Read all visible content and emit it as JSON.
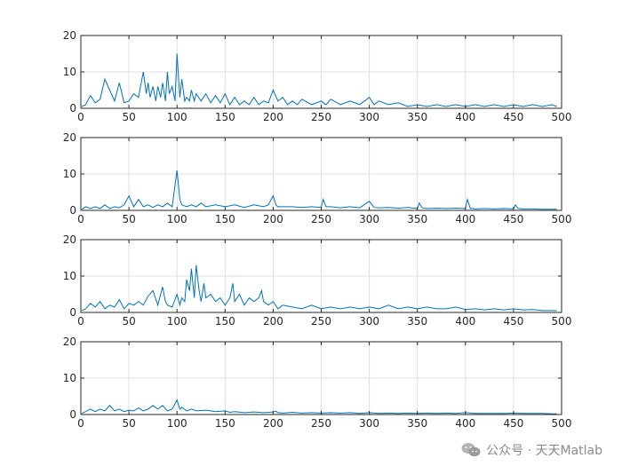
{
  "chart_data": [
    {
      "type": "line",
      "xlim": [
        0,
        500
      ],
      "ylim": [
        0,
        20
      ],
      "xticks": [
        0,
        50,
        100,
        150,
        200,
        250,
        300,
        350,
        400,
        450,
        500
      ],
      "yticks": [
        0,
        10,
        20
      ],
      "grid": true,
      "color": "#0072BD",
      "series": [
        {
          "x": [
            1,
            5,
            10,
            15,
            20,
            25,
            30,
            35,
            40,
            45,
            50,
            55,
            60,
            62,
            65,
            68,
            70,
            72,
            75,
            78,
            80,
            83,
            85,
            88,
            90,
            92,
            95,
            98,
            100,
            103,
            105,
            108,
            110,
            113,
            115,
            118,
            120,
            125,
            130,
            135,
            140,
            145,
            150,
            155,
            160,
            165,
            170,
            175,
            180,
            185,
            190,
            195,
            200,
            205,
            210,
            215,
            220,
            225,
            230,
            240,
            250,
            255,
            260,
            270,
            280,
            290,
            300,
            305,
            310,
            320,
            330,
            340,
            350,
            360,
            370,
            380,
            390,
            400,
            410,
            420,
            430,
            440,
            450,
            460,
            470,
            480,
            490,
            495
          ],
          "y": [
            0.5,
            1,
            3.5,
            1.5,
            2.5,
            8,
            5,
            2,
            7,
            1.5,
            2,
            4,
            3,
            6,
            10,
            4,
            7,
            3,
            6,
            2,
            6,
            3,
            7,
            2,
            10,
            4,
            6,
            2,
            15,
            3,
            8,
            2,
            3,
            2,
            5,
            2,
            4,
            2,
            4,
            1.5,
            3.5,
            1.5,
            4,
            1,
            3,
            1,
            2,
            1,
            3,
            1,
            2,
            1.5,
            5,
            2,
            3,
            1,
            2,
            1,
            2.5,
            1,
            2,
            1,
            2.5,
            1,
            2,
            1,
            3,
            1,
            2,
            1,
            1.5,
            0.5,
            1,
            0.5,
            1,
            0.5,
            1,
            0.5,
            1,
            0.5,
            1,
            0.5,
            1,
            0.5,
            1,
            0.5,
            1,
            0.5
          ]
        }
      ]
    },
    {
      "type": "line",
      "xlim": [
        0,
        500
      ],
      "ylim": [
        0,
        20
      ],
      "xticks": [
        0,
        50,
        100,
        150,
        200,
        250,
        300,
        350,
        400,
        450,
        500
      ],
      "yticks": [
        0,
        10,
        20
      ],
      "grid": true,
      "color": "#0072BD",
      "series": [
        {
          "x": [
            1,
            5,
            10,
            15,
            20,
            25,
            30,
            35,
            40,
            45,
            50,
            55,
            60,
            65,
            70,
            75,
            80,
            85,
            90,
            95,
            100,
            103,
            105,
            110,
            115,
            120,
            125,
            130,
            140,
            150,
            160,
            170,
            180,
            190,
            195,
            200,
            203,
            205,
            210,
            220,
            230,
            240,
            250,
            252,
            255,
            260,
            270,
            280,
            290,
            300,
            303,
            305,
            310,
            320,
            330,
            340,
            350,
            352,
            355,
            360,
            370,
            380,
            390,
            400,
            402,
            405,
            410,
            420,
            430,
            440,
            450,
            452,
            455,
            460,
            470,
            480,
            490,
            495
          ],
          "y": [
            0.3,
            1,
            0.5,
            1,
            0.5,
            1.5,
            0.5,
            1,
            0.7,
            1.5,
            4,
            1,
            3,
            1,
            1.5,
            0.8,
            1.5,
            1,
            2,
            1,
            11,
            3,
            1.5,
            1,
            1.5,
            1,
            2,
            1,
            1.5,
            1,
            1.5,
            0.8,
            1.5,
            1,
            1.5,
            4,
            1.5,
            1,
            1,
            1,
            0.8,
            1,
            0.8,
            3,
            1,
            1,
            0.7,
            1,
            0.7,
            2.5,
            1.5,
            0.8,
            0.7,
            0.8,
            0.6,
            0.8,
            0.5,
            2,
            0.7,
            0.5,
            0.6,
            0.5,
            0.6,
            0.5,
            3,
            0.6,
            0.4,
            0.5,
            0.4,
            0.5,
            0.4,
            1.5,
            0.5,
            0.4,
            0.4,
            0.3,
            0.3,
            0.3
          ]
        }
      ]
    },
    {
      "type": "line",
      "xlim": [
        0,
        500
      ],
      "ylim": [
        0,
        20
      ],
      "xticks": [
        0,
        50,
        100,
        150,
        200,
        250,
        300,
        350,
        400,
        450,
        500
      ],
      "yticks": [
        0,
        10,
        20
      ],
      "grid": true,
      "color": "#0072BD",
      "series": [
        {
          "x": [
            1,
            5,
            10,
            15,
            20,
            25,
            30,
            35,
            40,
            45,
            50,
            55,
            60,
            65,
            70,
            75,
            80,
            85,
            88,
            90,
            95,
            100,
            103,
            105,
            108,
            110,
            113,
            115,
            118,
            120,
            123,
            125,
            128,
            130,
            135,
            140,
            145,
            150,
            155,
            158,
            160,
            165,
            170,
            175,
            180,
            185,
            188,
            190,
            195,
            200,
            205,
            210,
            220,
            230,
            240,
            250,
            260,
            270,
            280,
            290,
            300,
            310,
            320,
            330,
            340,
            350,
            360,
            370,
            380,
            390,
            400,
            410,
            420,
            430,
            440,
            450,
            460,
            470,
            480,
            490,
            495
          ],
          "y": [
            0.5,
            1,
            2.5,
            1.5,
            3,
            1,
            2,
            1.5,
            3.5,
            1,
            2.5,
            2,
            3,
            2,
            4.5,
            6,
            2,
            7,
            3,
            2,
            1.5,
            5,
            2,
            4,
            3,
            9,
            6,
            12,
            4,
            13,
            6,
            3,
            8,
            4,
            5,
            3,
            4,
            2,
            4,
            8,
            3,
            5,
            2,
            4,
            3,
            4,
            6,
            3,
            2,
            3,
            1,
            2,
            1.5,
            1,
            2,
            1,
            1.5,
            1,
            1.5,
            1,
            1.5,
            1,
            2,
            1,
            1.5,
            1,
            1.5,
            1,
            1,
            1.5,
            0.8,
            1,
            0.7,
            1,
            0.7,
            1,
            0.7,
            0.8,
            0.5,
            0.5,
            0.5
          ]
        }
      ]
    },
    {
      "type": "line",
      "xlim": [
        0,
        500
      ],
      "ylim": [
        0,
        20
      ],
      "xticks": [
        0,
        50,
        100,
        150,
        200,
        250,
        300,
        350,
        400,
        450,
        500
      ],
      "yticks": [
        0,
        10,
        20
      ],
      "grid": true,
      "color": "#0072BD",
      "series": [
        {
          "x": [
            1,
            5,
            10,
            15,
            20,
            25,
            30,
            35,
            40,
            45,
            50,
            55,
            60,
            65,
            70,
            75,
            80,
            85,
            90,
            95,
            100,
            103,
            105,
            110,
            115,
            120,
            130,
            140,
            150,
            155,
            160,
            170,
            180,
            190,
            200,
            203,
            205,
            210,
            220,
            230,
            240,
            250,
            260,
            270,
            280,
            290,
            300,
            310,
            320,
            330,
            340,
            350,
            360,
            370,
            380,
            390,
            400,
            410,
            420,
            430,
            440,
            450,
            460,
            470,
            480,
            490,
            495
          ],
          "y": [
            0.3,
            0.8,
            1.5,
            0.8,
            1.5,
            1,
            2.5,
            1,
            1.5,
            0.8,
            1.2,
            1,
            1.8,
            1,
            1.5,
            2.5,
            1.5,
            2.5,
            1,
            1.5,
            4,
            1.5,
            2,
            1,
            1.5,
            1,
            1.2,
            0.8,
            1,
            0.6,
            0.8,
            0.5,
            0.7,
            0.5,
            0.7,
            0.9,
            0.5,
            0.4,
            0.6,
            0.4,
            0.5,
            0.4,
            0.5,
            0.4,
            0.5,
            0.3,
            0.5,
            0.3,
            0.4,
            0.3,
            0.4,
            0.3,
            0.4,
            0.3,
            0.4,
            0.3,
            0.5,
            0.3,
            0.3,
            0.3,
            0.3,
            0.4,
            0.3,
            0.3,
            0.3,
            0.2,
            0.2
          ]
        }
      ]
    }
  ],
  "watermark": {
    "text": "公众号 · 天天Matlab",
    "icon": "wechat-icon",
    "color": "#8a8a8a"
  }
}
